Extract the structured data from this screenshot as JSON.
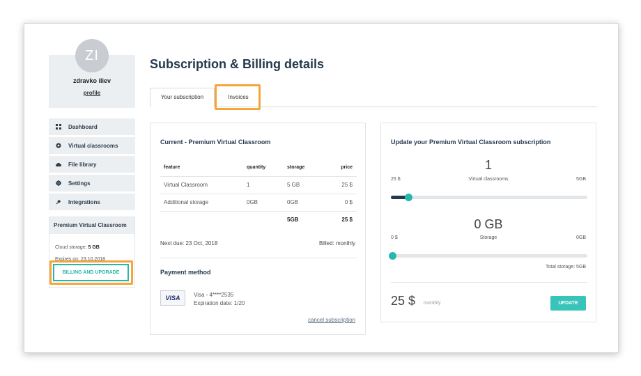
{
  "profile": {
    "initials": "ZI",
    "name": "zdravko iliev",
    "link": "profile"
  },
  "menu": [
    {
      "label": "Dashboard",
      "icon": "grid-icon"
    },
    {
      "label": "Virtual classrooms",
      "icon": "circle-dot-icon"
    },
    {
      "label": "File library",
      "icon": "cloud-icon"
    },
    {
      "label": "Settings",
      "icon": "gear-icon"
    },
    {
      "label": "Integrations",
      "icon": "plug-icon"
    }
  ],
  "plan": {
    "title": "Premium Virtual Classroom",
    "storage_label": "Cloud storage:",
    "storage_value": "5 GB",
    "expires": "Expires on: 23.10.2018",
    "button": "BILLING AND UPGRADE"
  },
  "page_title": "Subscription & Billing details",
  "tabs": {
    "subscription": "Your subscription",
    "invoices": "Invoices"
  },
  "current": {
    "title": "Current - Premium Virtual Classroom",
    "headers": [
      "feature",
      "quantity",
      "storage",
      "price"
    ],
    "rows": [
      [
        "Virtual Classroom",
        "1",
        "5 GB",
        "25 $"
      ],
      [
        "Additional storage",
        "0GB",
        "0GB",
        "0 $"
      ],
      [
        "",
        "",
        "5GB",
        "25 $"
      ]
    ],
    "next_due": "Next due: 23 Oct, 2018",
    "billed": "Billed: monthly"
  },
  "payment": {
    "title": "Payment method",
    "card_brand": "VISA",
    "card": "Visa - 4****2535",
    "expiration": "Expiration date: 1/20",
    "cancel": "cancel subscription"
  },
  "update": {
    "title": "Update your Premium Virtual Classroom subscription",
    "classrooms": {
      "value": "1",
      "min": "25 $",
      "label": "Virtual classrooms",
      "max": "5GB",
      "fraction": 0.09
    },
    "storage": {
      "value": "0 GB",
      "min": "0 $",
      "label": "Storage",
      "max": "0GB",
      "fraction": 0.0
    },
    "total_storage": "Total storage: 5GB",
    "price": "25 $",
    "period": "monthly",
    "button": "UPDATE"
  },
  "colors": {
    "accent": "#26b8ae",
    "navy": "#26394d",
    "highlight": "#f5a53a"
  }
}
